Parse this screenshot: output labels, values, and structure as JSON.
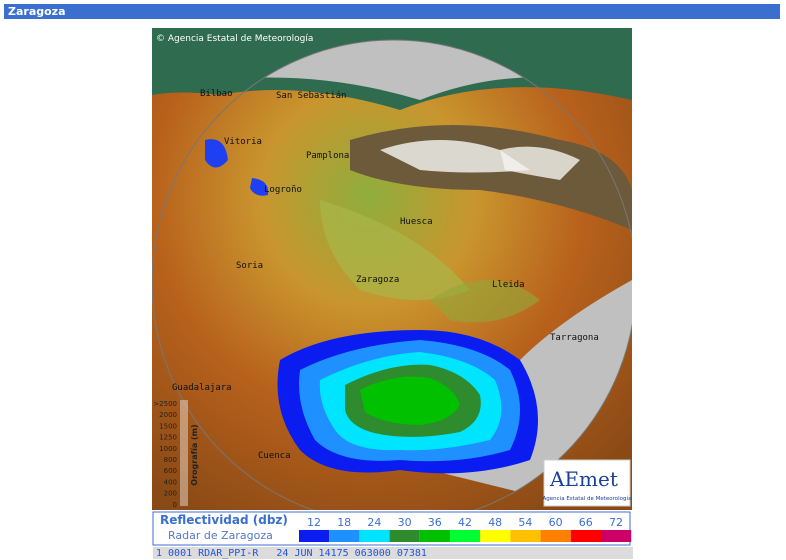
{
  "header": {
    "title": "Zaragoza"
  },
  "map": {
    "copyright": "Agencia Estatal de Meteorología",
    "cities": [
      "Bilbao",
      "San Sebastián",
      "Vitoria",
      "Pamplona",
      "Logroño",
      "Huesca",
      "Soria",
      "Zaragoza",
      "Lleida",
      "Tarragona",
      "Guadalajara",
      "Cuenca"
    ],
    "orography": {
      "label": "Orografía (m)",
      "ticks": [
        ">2500",
        "2000",
        "1500",
        "1250",
        "1000",
        "800",
        "600",
        "400",
        "200",
        "0"
      ]
    },
    "logo": "AEmet",
    "logo_caption": "Agencia Estatal de Meteorología"
  },
  "legend": {
    "title": "Reflectividad (dbz)",
    "subtitle": "Radar de Zaragoza",
    "levels": [
      {
        "value": 12,
        "color": "#0a1cf0"
      },
      {
        "value": 18,
        "color": "#1e90ff"
      },
      {
        "value": 24,
        "color": "#00e5ff"
      },
      {
        "value": 30,
        "color": "#2e8b2e"
      },
      {
        "value": 36,
        "color": "#00c000"
      },
      {
        "value": 42,
        "color": "#00ff33"
      },
      {
        "value": 48,
        "color": "#ffff00"
      },
      {
        "value": 54,
        "color": "#ffc000"
      },
      {
        "value": 60,
        "color": "#ff8000"
      },
      {
        "value": 66,
        "color": "#ff0000"
      },
      {
        "value": 72,
        "color": "#cc0066"
      }
    ]
  },
  "status": "1 0001 RDAR_PPI-R   24 JUN 14175 063000 07381"
}
